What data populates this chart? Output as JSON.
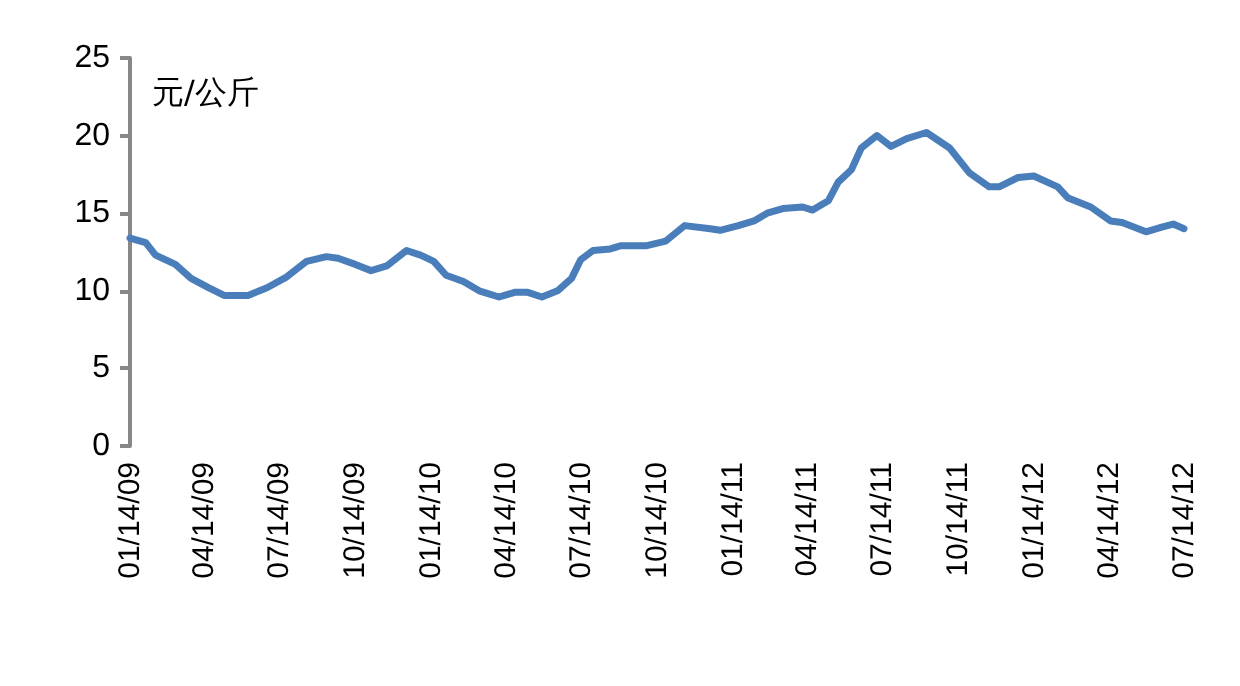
{
  "chart_data": {
    "type": "line",
    "ylabel": "元/公斤",
    "x": [
      "2009-01-14",
      "2009-02-02",
      "2009-02-14",
      "2009-03-10",
      "2009-03-29",
      "2009-04-19",
      "2009-05-08",
      "2009-06-06",
      "2009-06-29",
      "2009-07-23",
      "2009-08-16",
      "2009-09-09",
      "2009-09-23",
      "2009-10-14",
      "2009-11-02",
      "2009-11-21",
      "2009-12-15",
      "2010-01-01",
      "2010-01-17",
      "2010-02-01",
      "2010-02-22",
      "2010-03-13",
      "2010-04-06",
      "2010-04-25",
      "2010-05-11",
      "2010-05-28",
      "2010-06-16",
      "2010-07-03",
      "2010-07-14",
      "2010-07-29",
      "2010-08-19",
      "2010-08-31",
      "2010-10-01",
      "2010-10-25",
      "2010-11-17",
      "2010-12-18",
      "2010-12-30",
      "2011-01-21",
      "2011-02-09",
      "2011-02-25",
      "2011-03-16",
      "2011-04-09",
      "2011-04-21",
      "2011-05-10",
      "2011-05-22",
      "2011-06-07",
      "2011-06-19",
      "2011-07-08",
      "2011-07-25",
      "2011-08-13",
      "2011-09-06",
      "2011-10-04",
      "2011-10-28",
      "2011-11-21",
      "2011-12-03",
      "2011-12-26",
      "2012-01-14",
      "2012-02-12",
      "2012-02-24",
      "2012-03-23",
      "2012-04-16",
      "2012-04-30",
      "2012-05-29",
      "2012-06-17",
      "2012-07-01",
      "2012-07-14"
    ],
    "series": [
      {
        "color": "#4a7ebb",
        "values": [
          13.4,
          13.1,
          12.3,
          11.7,
          10.8,
          10.2,
          9.7,
          9.7,
          10.2,
          10.9,
          11.9,
          12.2,
          12.1,
          11.7,
          11.3,
          11.6,
          12.6,
          12.3,
          11.9,
          11.0,
          10.6,
          10.0,
          9.6,
          9.9,
          9.9,
          9.6,
          10.0,
          10.8,
          12.0,
          12.6,
          12.7,
          12.9,
          12.9,
          13.2,
          14.2,
          14.0,
          13.9,
          14.2,
          14.5,
          15.0,
          15.3,
          15.4,
          15.2,
          15.8,
          17.0,
          17.8,
          19.2,
          20.0,
          19.3,
          19.8,
          20.2,
          19.2,
          17.6,
          16.7,
          16.7,
          17.3,
          17.4,
          16.7,
          16.0,
          15.4,
          14.5,
          14.4,
          13.8,
          14.1,
          14.3,
          14.0
        ]
      }
    ],
    "xticks": [
      {
        "value": "2009-01-14",
        "label": "01/14/09"
      },
      {
        "value": "2009-04-14",
        "label": "04/14/09"
      },
      {
        "value": "2009-07-14",
        "label": "07/14/09"
      },
      {
        "value": "2009-10-14",
        "label": "10/14/09"
      },
      {
        "value": "2010-01-14",
        "label": "01/14/10"
      },
      {
        "value": "2010-04-14",
        "label": "04/14/10"
      },
      {
        "value": "2010-07-14",
        "label": "07/14/10"
      },
      {
        "value": "2010-10-14",
        "label": "10/14/10"
      },
      {
        "value": "2011-01-14",
        "label": "01/14/11"
      },
      {
        "value": "2011-04-14",
        "label": "04/14/11"
      },
      {
        "value": "2011-07-14",
        "label": "07/14/11"
      },
      {
        "value": "2011-10-14",
        "label": "10/14/11"
      },
      {
        "value": "2012-01-14",
        "label": "01/14/12"
      },
      {
        "value": "2012-04-14",
        "label": "04/14/12"
      },
      {
        "value": "2012-07-14",
        "label": "07/14/12"
      }
    ],
    "xlim": [
      "2009-01-14",
      "2012-07-14"
    ],
    "ylim": [
      0,
      25
    ],
    "yticks": [
      0,
      5,
      10,
      15,
      20,
      25
    ],
    "grid": false,
    "marker": "none",
    "line_style": "solid"
  }
}
